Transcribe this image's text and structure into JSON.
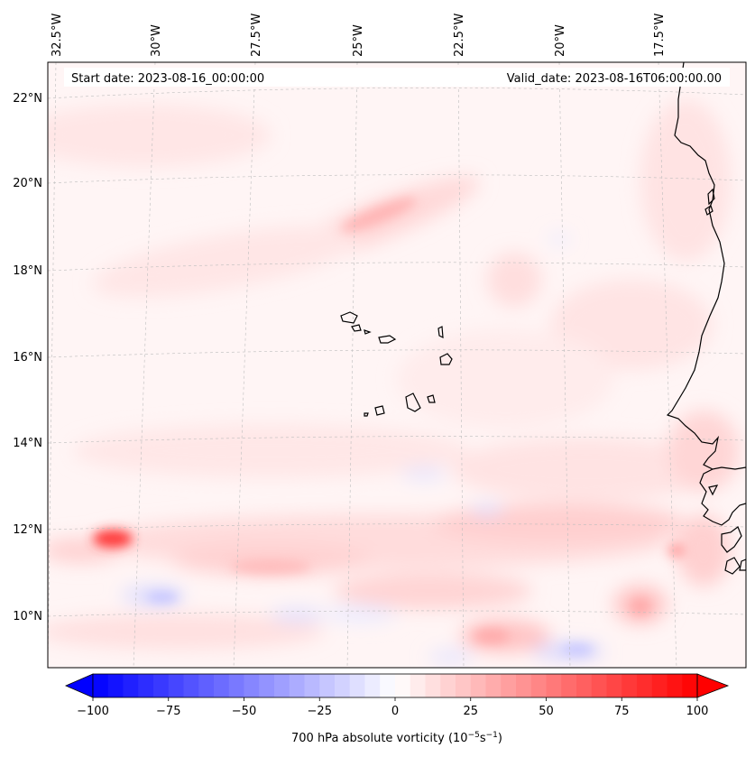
{
  "map": {
    "start_date": "Start date: 2023-08-16_00:00:00",
    "valid_date": "Valid_date: 2023-08-16T06:00:00.00",
    "lon_labels": [
      "32.5°W",
      "30°W",
      "27.5°W",
      "25°W",
      "22.5°W",
      "20°W",
      "17.5°W"
    ],
    "lat_labels": [
      "22°N",
      "20°N",
      "18°N",
      "16°N",
      "14°N",
      "12°N",
      "10°N"
    ],
    "gridlines": true,
    "coastline_color": "#000000"
  },
  "colorbar": {
    "label_prefix": "700 hPa absolute vorticity (10",
    "label_exp1": "−5",
    "label_mid": "s",
    "label_exp2": "−1",
    "label_suffix": ")",
    "ticks": [
      "−100",
      "−75",
      "−50",
      "−25",
      "0",
      "25",
      "50",
      "75",
      "100"
    ],
    "range": [
      -100,
      100
    ],
    "extend": "both",
    "colormap": "bwr",
    "low_color": "#0000ff",
    "mid_color": "#ffffff",
    "high_color": "#ff0000"
  }
}
